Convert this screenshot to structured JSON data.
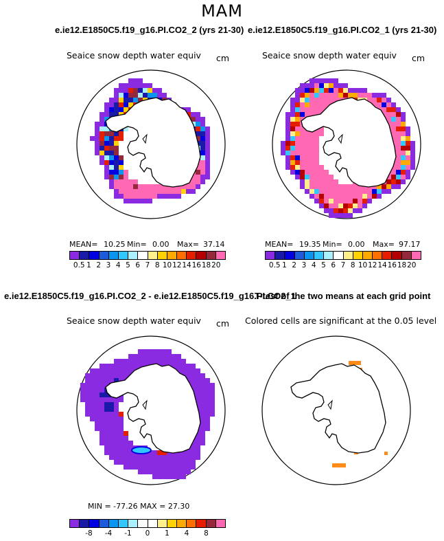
{
  "season": "MAM",
  "panels": {
    "p1": {
      "title": "e.ie12.E1850C5.f19_g16.PI.CO2_2 (yrs 21-30)",
      "subtitle": "Seaice snow depth water equiv",
      "unit": "cm",
      "mean_label": "MEAN=",
      "mean": "10.25",
      "min_label": "Min=",
      "min": "0.00",
      "max_label": "Max=",
      "max": "37.14"
    },
    "p2": {
      "title": "e.ie12.E1850C5.f19_g16.PI.CO2_1 (yrs 21-30)",
      "subtitle": "Seaice snow depth water equiv",
      "unit": "cm",
      "mean_label": "MEAN=",
      "mean": "19.35",
      "min_label": "Min=",
      "min": "0.00",
      "max_label": "Max=",
      "max": "97.17"
    },
    "p3": {
      "title": "e.ie12.E1850C5.f19_g16.PI.CO2_2 - e.ie12.E1850C5.f19_g16.PI.CO2_1",
      "subtitle": "Seaice snow depth water equiv",
      "unit": "cm",
      "stats_text": "MIN = -77.26  MAX =   27.30"
    },
    "p4": {
      "title": "T-test of the two means at each grid point",
      "subtitle": "Colored cells are significant at the 0.05 level"
    }
  },
  "colors": {
    "abs_scale": [
      "#8a2be2",
      "#1a1aa8",
      "#0000e0",
      "#1e5adc",
      "#0a96f0",
      "#32c8ff",
      "#aaf0ff",
      "#ffffff",
      "#fff08c",
      "#ffd200",
      "#ffaa00",
      "#ff6e00",
      "#e61e00",
      "#b40000",
      "#96283c",
      "#ff69b4"
    ],
    "diff_scale": [
      "#8a2be2",
      "#1a1aa8",
      "#0000e0",
      "#1e5adc",
      "#0a96f0",
      "#32c8ff",
      "#aaf0ff",
      "#ffffff",
      "#ffffff",
      "#fff08c",
      "#ffd200",
      "#ffaa00",
      "#ff6e00",
      "#e61e00",
      "#96283c",
      "#ff69b4"
    ],
    "ttest": "#ff8c1a"
  },
  "chart_data": [
    {
      "type": "heatmap",
      "title": "e.ie12.E1850C5.f19_g16.PI.CO2_2 (yrs 21-30)",
      "variable": "Seaice snow depth water equiv",
      "unit": "cm",
      "projection": "south polar stereographic",
      "mean": 10.25,
      "min": 0.0,
      "max": 37.14,
      "colorbar_levels": [
        "0.5",
        "1",
        "2",
        "3",
        "4",
        "5",
        "6",
        "7",
        "8",
        "10",
        "12",
        "14",
        "16",
        "18",
        "20"
      ]
    },
    {
      "type": "heatmap",
      "title": "e.ie12.E1850C5.f19_g16.PI.CO2_1 (yrs 21-30)",
      "variable": "Seaice snow depth water equiv",
      "unit": "cm",
      "projection": "south polar stereographic",
      "mean": 19.35,
      "min": 0.0,
      "max": 97.17,
      "colorbar_levels": [
        "0.5",
        "1",
        "2",
        "3",
        "4",
        "5",
        "6",
        "7",
        "8",
        "10",
        "12",
        "14",
        "16",
        "18",
        "20"
      ]
    },
    {
      "type": "heatmap",
      "title": "e.ie12.E1850C5.f19_g16.PI.CO2_2 - e.ie12.E1850C5.f19_g16.PI.CO2_1",
      "variable": "Seaice snow depth water equiv",
      "unit": "cm",
      "projection": "south polar stereographic",
      "min": -77.26,
      "max": 27.3,
      "colorbar_levels": [
        "-8",
        "-4",
        "-1",
        "0",
        "1",
        "4",
        "8"
      ]
    },
    {
      "type": "heatmap",
      "title": "T-test of the two means at each grid point",
      "variable": "Colored cells are significant at the 0.05 level",
      "projection": "south polar stereographic",
      "significance_level": 0.05
    }
  ]
}
